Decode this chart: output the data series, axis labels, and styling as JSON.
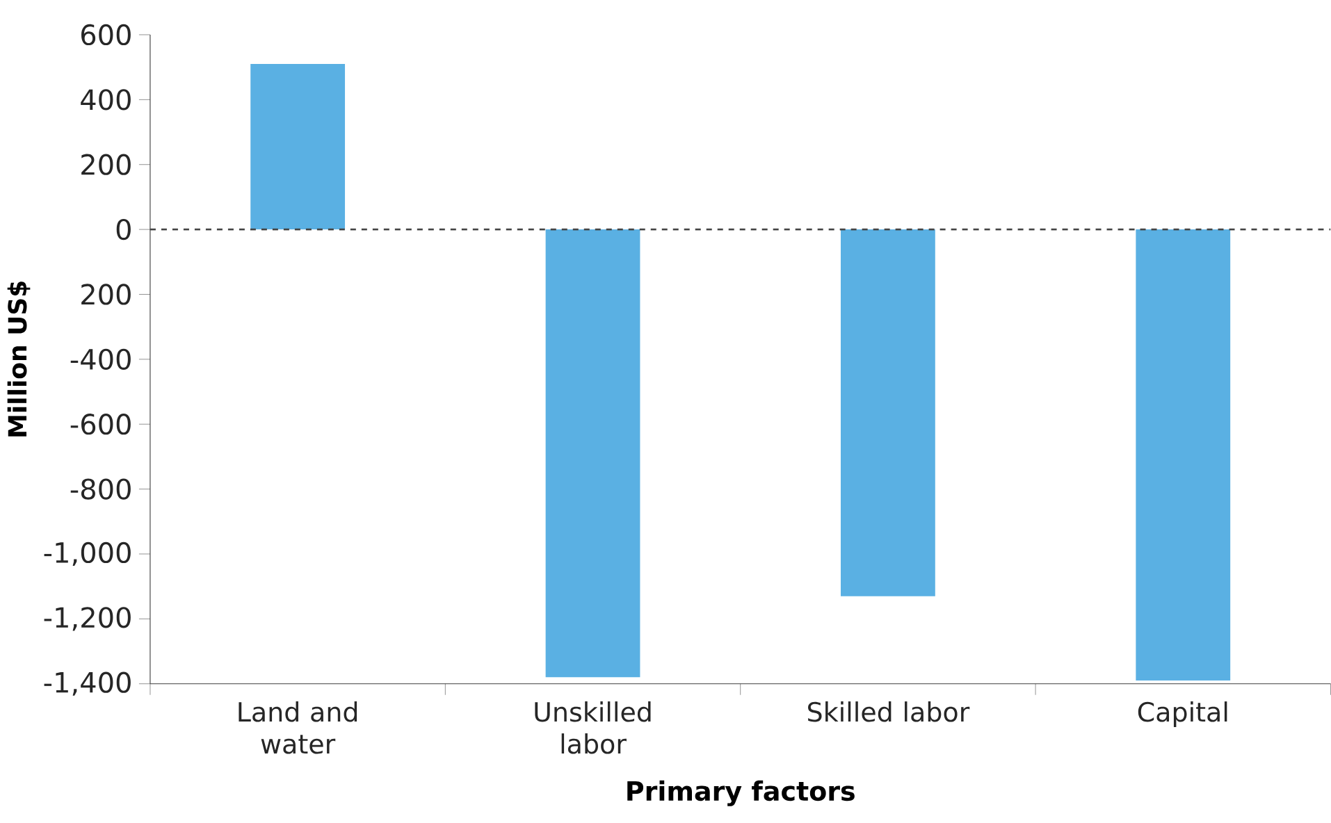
{
  "chart_data": {
    "type": "bar",
    "xlabel": "Primary factors",
    "ylabel": "Million US$",
    "categories": [
      "Land and water",
      "Unskilled labor",
      "Skilled labor",
      "Capital"
    ],
    "values": [
      510,
      -1380,
      -1130,
      -1390
    ],
    "color": "#5ab0e3",
    "ylim": [
      -1400,
      600
    ],
    "yticks": [
      600,
      400,
      200,
      0,
      {
        "value": -200,
        "label": "200"
      },
      -400,
      -600,
      -800,
      {
        "value": -1000,
        "label": "-1,000"
      },
      {
        "value": -1200,
        "label": "-1,200"
      },
      {
        "value": -1400,
        "label": "-1,400"
      }
    ],
    "ref_lines": [
      {
        "axis": "y",
        "value": 0,
        "color": "#444444",
        "line_style": "dashed"
      }
    ]
  }
}
